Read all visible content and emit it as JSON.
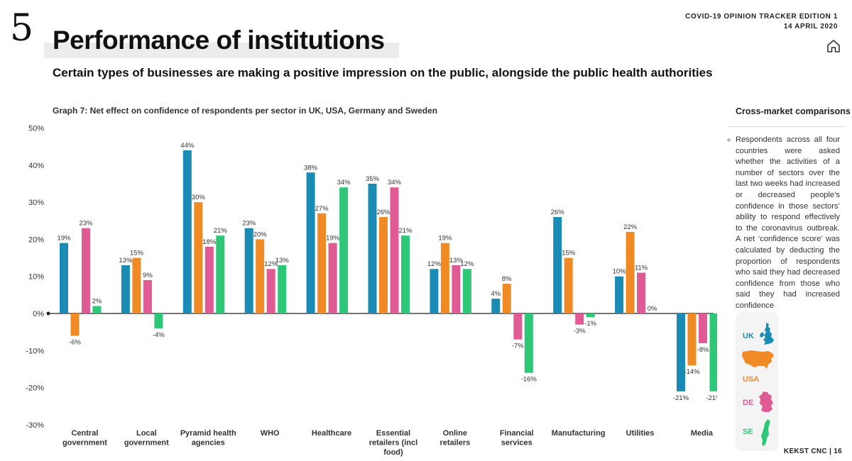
{
  "header": {
    "section_number": "5",
    "title": "Performance of institutions",
    "subtitle": "Certain types of businesses are making a positive impression on the public, alongside the public health authorities",
    "tracker_line1": "COVID-19 OPINION TRACKER EDITION 1",
    "tracker_line2": "14 APRIL 2020",
    "home_icon": "home-icon"
  },
  "graph_title": "Graph 7: Net effect on confidence of respondents per sector in UK, USA, Germany and Sweden",
  "chart_data": {
    "type": "bar",
    "categories": [
      [
        "Central",
        "government"
      ],
      [
        "Local",
        "government"
      ],
      [
        "Pyramid health",
        "agencies"
      ],
      [
        "WHO"
      ],
      [
        "Healthcare"
      ],
      [
        "Essential",
        "retailers (incl",
        "food)"
      ],
      [
        "Online",
        "retailers"
      ],
      [
        "Financial",
        "services"
      ],
      [
        "Manufacturing"
      ],
      [
        "Utilities"
      ],
      [
        "Media"
      ]
    ],
    "series": [
      {
        "name": "UK",
        "color": "#1a8bb4",
        "values": [
          19,
          13,
          44,
          23,
          38,
          35,
          12,
          4,
          26,
          10,
          -21
        ]
      },
      {
        "name": "USA",
        "color": "#f08a24",
        "values": [
          -6,
          15,
          30,
          20,
          27,
          26,
          19,
          8,
          15,
          22,
          -14
        ]
      },
      {
        "name": "DE",
        "color": "#e05a93",
        "values": [
          23,
          9,
          18,
          12,
          19,
          34,
          13,
          -7,
          -3,
          11,
          -8
        ]
      },
      {
        "name": "SE",
        "color": "#2ec778",
        "values": [
          2,
          -4,
          21,
          13,
          34,
          21,
          12,
          -16,
          -1,
          0,
          -21
        ]
      }
    ],
    "y_ticks": [
      "50%",
      "40%",
      "30%",
      "20%",
      "10%",
      "0%",
      "-10%",
      "-20%",
      "-30%"
    ],
    "ylim": [
      -30,
      50
    ],
    "grid": false,
    "legend_placement": "right"
  },
  "sidebar": {
    "heading": "Cross-market comparisons",
    "body": "Respondents across all four countries were asked whether the activities of a number of sectors over the last two weeks had increased or decreased people’s confidence in those sectors’ ability to respond effectively to the coronavirus outbreak. A net ‘confidence score’ was calculated by deducting the proportion of respondents who said they had decreased confidence from those who said they had increased confidence"
  },
  "legend": {
    "items": [
      {
        "label": "UK",
        "color": "#1a8bb4",
        "icon": "uk-map-icon"
      },
      {
        "label": "USA",
        "color": "#f08a24",
        "icon": "usa-map-icon"
      },
      {
        "label": "DE",
        "color": "#e05a93",
        "icon": "germany-map-icon"
      },
      {
        "label": "SE",
        "color": "#2ec778",
        "icon": "sweden-map-icon"
      }
    ]
  },
  "footer": {
    "brand": "KEKST CNC",
    "separator": "|",
    "page_number": "16"
  }
}
